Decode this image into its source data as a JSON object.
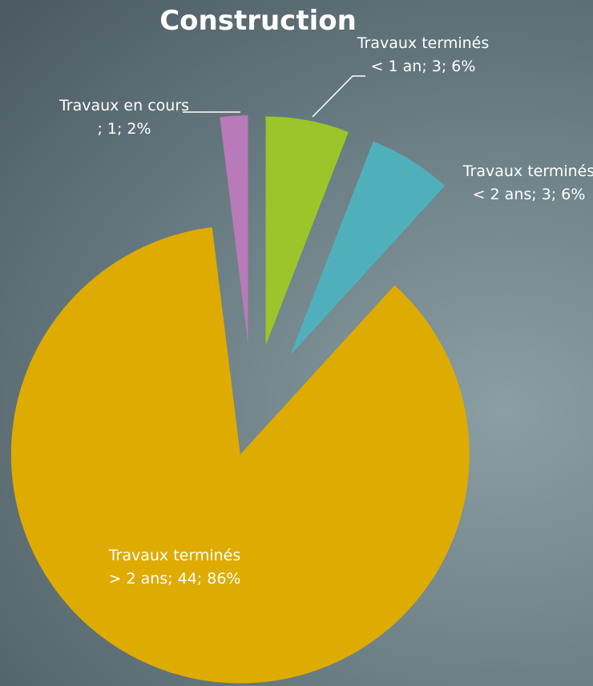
{
  "chart_data": {
    "type": "pie",
    "title": "Construction",
    "values": [
      3,
      3,
      44,
      1
    ],
    "value_labels": [
      "Travaux terminés < 1 an; 3; 6%",
      "Travaux terminés < 2 ans; 3; 6%",
      "Travaux terminés > 2 ans; 44; 86%",
      "Travaux en cours ; 1; 2%"
    ],
    "colors": [
      "#9bc52a",
      "#4fb0bb",
      "#deab00",
      "#b87ab8"
    ]
  }
}
